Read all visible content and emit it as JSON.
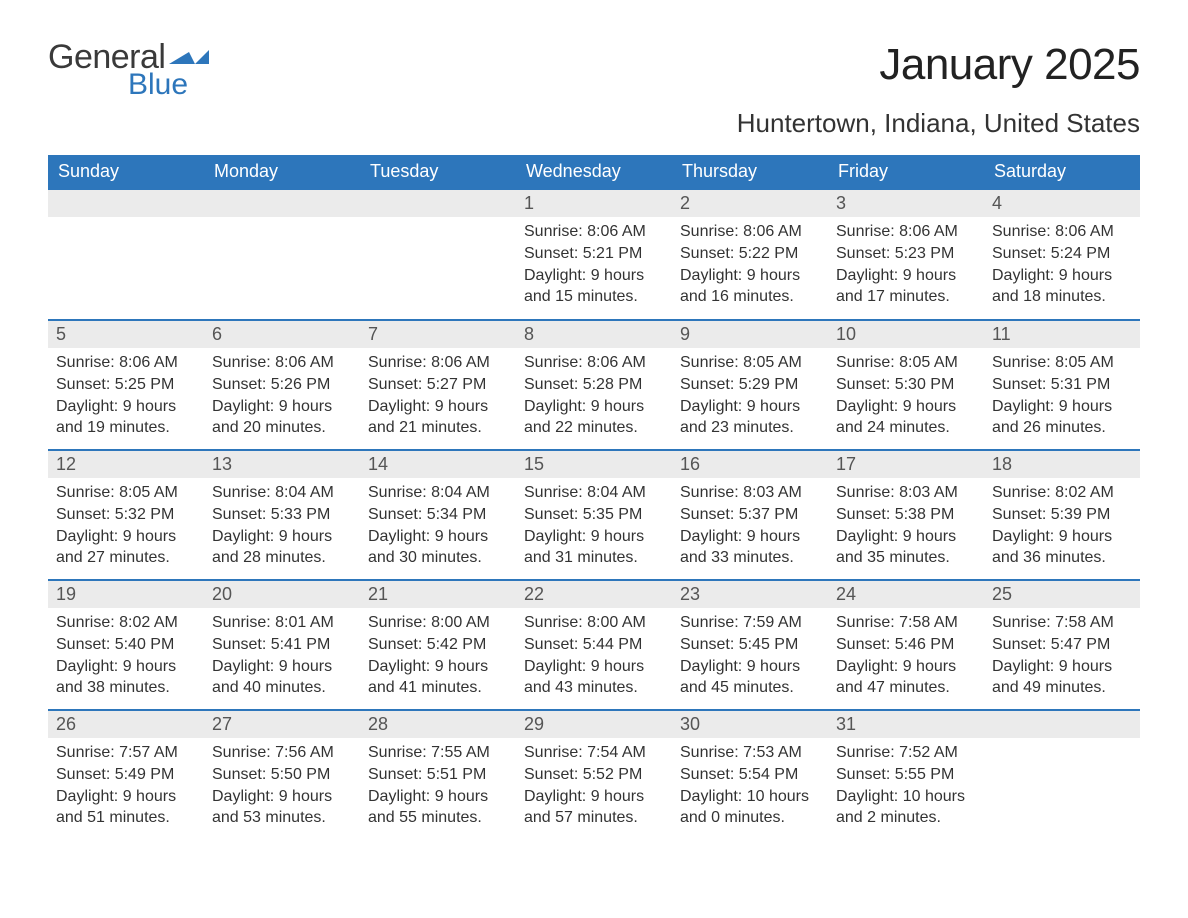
{
  "logo": {
    "text_general": "General",
    "text_blue": "Blue",
    "flag_color": "#2d76bb"
  },
  "colors": {
    "header_bg": "#2d76bb",
    "header_text": "#ffffff",
    "daynum_bg": "#ebebeb",
    "daynum_text": "#555555",
    "body_text": "#333333",
    "row_sep": "#2d76bb",
    "page_bg": "#ffffff"
  },
  "typography": {
    "title_fontsize_pt": 33,
    "location_fontsize_pt": 20,
    "dayheader_fontsize_pt": 14,
    "daynum_fontsize_pt": 14,
    "body_fontsize_pt": 12,
    "font_family": "Arial"
  },
  "title": {
    "month": "January 2025",
    "location": "Huntertown, Indiana, United States"
  },
  "day_headers": [
    "Sunday",
    "Monday",
    "Tuesday",
    "Wednesday",
    "Thursday",
    "Friday",
    "Saturday"
  ],
  "weeks": [
    [
      null,
      null,
      null,
      {
        "n": "1",
        "sunrise": "8:06 AM",
        "sunset": "5:21 PM",
        "daylight": "9 hours and 15 minutes."
      },
      {
        "n": "2",
        "sunrise": "8:06 AM",
        "sunset": "5:22 PM",
        "daylight": "9 hours and 16 minutes."
      },
      {
        "n": "3",
        "sunrise": "8:06 AM",
        "sunset": "5:23 PM",
        "daylight": "9 hours and 17 minutes."
      },
      {
        "n": "4",
        "sunrise": "8:06 AM",
        "sunset": "5:24 PM",
        "daylight": "9 hours and 18 minutes."
      }
    ],
    [
      {
        "n": "5",
        "sunrise": "8:06 AM",
        "sunset": "5:25 PM",
        "daylight": "9 hours and 19 minutes."
      },
      {
        "n": "6",
        "sunrise": "8:06 AM",
        "sunset": "5:26 PM",
        "daylight": "9 hours and 20 minutes."
      },
      {
        "n": "7",
        "sunrise": "8:06 AM",
        "sunset": "5:27 PM",
        "daylight": "9 hours and 21 minutes."
      },
      {
        "n": "8",
        "sunrise": "8:06 AM",
        "sunset": "5:28 PM",
        "daylight": "9 hours and 22 minutes."
      },
      {
        "n": "9",
        "sunrise": "8:05 AM",
        "sunset": "5:29 PM",
        "daylight": "9 hours and 23 minutes."
      },
      {
        "n": "10",
        "sunrise": "8:05 AM",
        "sunset": "5:30 PM",
        "daylight": "9 hours and 24 minutes."
      },
      {
        "n": "11",
        "sunrise": "8:05 AM",
        "sunset": "5:31 PM",
        "daylight": "9 hours and 26 minutes."
      }
    ],
    [
      {
        "n": "12",
        "sunrise": "8:05 AM",
        "sunset": "5:32 PM",
        "daylight": "9 hours and 27 minutes."
      },
      {
        "n": "13",
        "sunrise": "8:04 AM",
        "sunset": "5:33 PM",
        "daylight": "9 hours and 28 minutes."
      },
      {
        "n": "14",
        "sunrise": "8:04 AM",
        "sunset": "5:34 PM",
        "daylight": "9 hours and 30 minutes."
      },
      {
        "n": "15",
        "sunrise": "8:04 AM",
        "sunset": "5:35 PM",
        "daylight": "9 hours and 31 minutes."
      },
      {
        "n": "16",
        "sunrise": "8:03 AM",
        "sunset": "5:37 PM",
        "daylight": "9 hours and 33 minutes."
      },
      {
        "n": "17",
        "sunrise": "8:03 AM",
        "sunset": "5:38 PM",
        "daylight": "9 hours and 35 minutes."
      },
      {
        "n": "18",
        "sunrise": "8:02 AM",
        "sunset": "5:39 PM",
        "daylight": "9 hours and 36 minutes."
      }
    ],
    [
      {
        "n": "19",
        "sunrise": "8:02 AM",
        "sunset": "5:40 PM",
        "daylight": "9 hours and 38 minutes."
      },
      {
        "n": "20",
        "sunrise": "8:01 AM",
        "sunset": "5:41 PM",
        "daylight": "9 hours and 40 minutes."
      },
      {
        "n": "21",
        "sunrise": "8:00 AM",
        "sunset": "5:42 PM",
        "daylight": "9 hours and 41 minutes."
      },
      {
        "n": "22",
        "sunrise": "8:00 AM",
        "sunset": "5:44 PM",
        "daylight": "9 hours and 43 minutes."
      },
      {
        "n": "23",
        "sunrise": "7:59 AM",
        "sunset": "5:45 PM",
        "daylight": "9 hours and 45 minutes."
      },
      {
        "n": "24",
        "sunrise": "7:58 AM",
        "sunset": "5:46 PM",
        "daylight": "9 hours and 47 minutes."
      },
      {
        "n": "25",
        "sunrise": "7:58 AM",
        "sunset": "5:47 PM",
        "daylight": "9 hours and 49 minutes."
      }
    ],
    [
      {
        "n": "26",
        "sunrise": "7:57 AM",
        "sunset": "5:49 PM",
        "daylight": "9 hours and 51 minutes."
      },
      {
        "n": "27",
        "sunrise": "7:56 AM",
        "sunset": "5:50 PM",
        "daylight": "9 hours and 53 minutes."
      },
      {
        "n": "28",
        "sunrise": "7:55 AM",
        "sunset": "5:51 PM",
        "daylight": "9 hours and 55 minutes."
      },
      {
        "n": "29",
        "sunrise": "7:54 AM",
        "sunset": "5:52 PM",
        "daylight": "9 hours and 57 minutes."
      },
      {
        "n": "30",
        "sunrise": "7:53 AM",
        "sunset": "5:54 PM",
        "daylight": "10 hours and 0 minutes."
      },
      {
        "n": "31",
        "sunrise": "7:52 AM",
        "sunset": "5:55 PM",
        "daylight": "10 hours and 2 minutes."
      },
      null
    ]
  ],
  "labels": {
    "sunrise": "Sunrise: ",
    "sunset": "Sunset: ",
    "daylight": "Daylight: "
  }
}
